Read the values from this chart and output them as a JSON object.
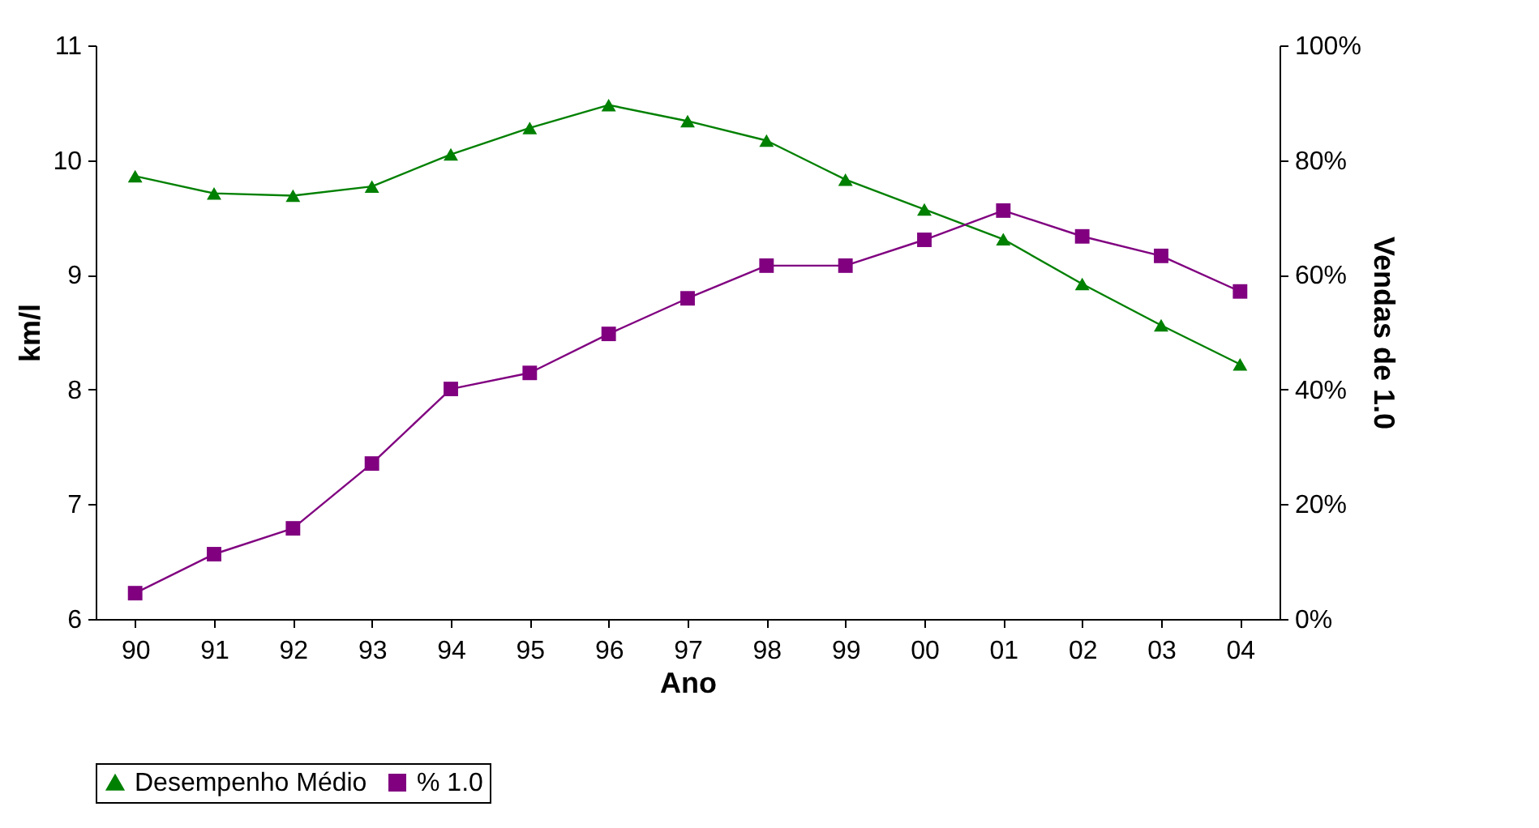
{
  "chart_data": {
    "type": "line",
    "xlabel": "Ano",
    "ylabel": "km/l",
    "y2label": "Vendas de 1.0",
    "categories": [
      "90",
      "91",
      "92",
      "93",
      "94",
      "95",
      "96",
      "97",
      "98",
      "99",
      "00",
      "01",
      "02",
      "03",
      "04"
    ],
    "series": [
      {
        "name": "Desempenho Médio",
        "color": "#008000",
        "marker": "triangle",
        "values": [
          9.86,
          9.71,
          9.69,
          9.77,
          10.05,
          10.28,
          10.48,
          10.34,
          10.17,
          9.83,
          9.57,
          9.31,
          8.92,
          8.56,
          8.22
        ]
      },
      {
        "name": "% 1.0",
        "color": "#800080",
        "marker": "square",
        "axis": "y2",
        "values": [
          4.5,
          11.3,
          15.8,
          27.1,
          40.1,
          42.9,
          49.7,
          55.9,
          61.6,
          61.6,
          66.1,
          71.2,
          66.7,
          63.3,
          57.1
        ]
      }
    ],
    "ylim": [
      6,
      11
    ],
    "yticks": [
      6,
      7,
      8,
      9,
      10,
      11
    ],
    "y2lim": [
      0,
      100
    ],
    "y2ticks": [
      {
        "value": 0,
        "label": "0%"
      },
      {
        "value": 20,
        "label": "20%"
      },
      {
        "value": 40,
        "label": "40%"
      },
      {
        "value": 60,
        "label": "60%"
      },
      {
        "value": 80,
        "label": "80%"
      },
      {
        "value": 100,
        "label": "100%"
      }
    ],
    "legend": "bottom",
    "grid": false,
    "line_style": "solid"
  }
}
